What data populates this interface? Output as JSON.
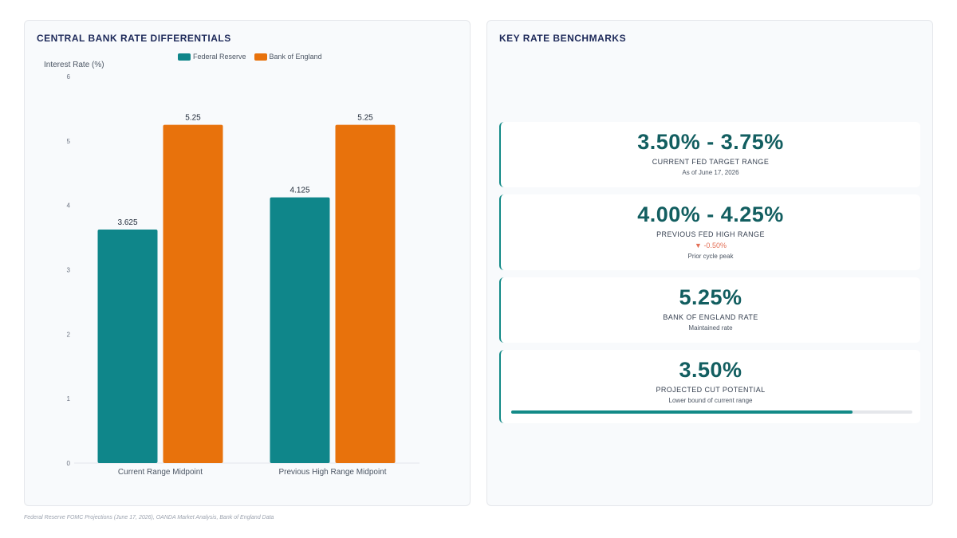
{
  "left_panel": {
    "title": "CENTRAL BANK RATE DIFFERENTIALS"
  },
  "right_panel": {
    "title": "KEY RATE BENCHMARKS"
  },
  "colors": {
    "fed": "#0f868a",
    "boe": "#e8720c",
    "accent": "#138a87",
    "negative": "#e36f56"
  },
  "chart_data": {
    "type": "bar",
    "categories": [
      "Current Range Midpoint",
      "Previous High Range Midpoint"
    ],
    "series": [
      {
        "name": "Federal Reserve",
        "values": [
          3.625,
          4.125
        ],
        "value_labels": [
          "3.625",
          "4.125"
        ]
      },
      {
        "name": "Bank of England",
        "values": [
          5.25,
          5.25
        ],
        "value_labels": [
          "5.25",
          "5.25"
        ]
      }
    ],
    "ylabel": "Interest Rate (%)",
    "ylim": [
      0,
      6
    ],
    "yticks": [
      "0",
      "1",
      "2",
      "3",
      "4",
      "5",
      "6"
    ],
    "legend_position": "top-center",
    "grid": false
  },
  "cards": [
    {
      "value": "3.50% - 3.75%",
      "label": "CURRENT FED TARGET RANGE",
      "sub": "As of June 17, 2026"
    },
    {
      "value": "4.00% - 4.25%",
      "label": "PREVIOUS FED HIGH RANGE",
      "change": "▼ -0.50%",
      "sub": "Prior cycle peak"
    },
    {
      "value": "5.25%",
      "label": "BANK OF ENGLAND RATE",
      "sub": "Maintained rate"
    },
    {
      "value": "3.50%",
      "label": "PROJECTED CUT POTENTIAL",
      "sub": "Lower bound of current range",
      "progress_percent": 85
    }
  ],
  "source": "Federal Reserve FOMC Projections (June 17, 2026), OANDA Market Analysis, Bank of England Data"
}
